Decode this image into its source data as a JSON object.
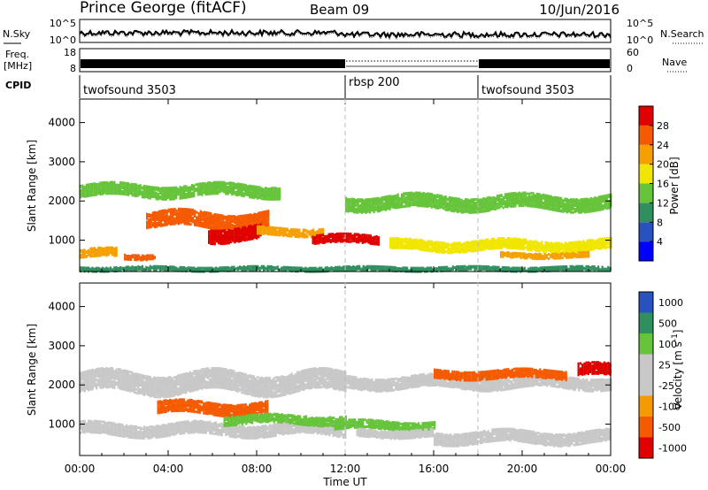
{
  "header": {
    "station": "Prince George (fitACF)",
    "beam": "Beam 09",
    "date": "10/Jun/2016"
  },
  "noise_panel": {
    "left_label": "N.Sky",
    "right_label": "N.Search",
    "left_ticks": [
      "10^5",
      "10^0"
    ],
    "right_ticks": [
      "10^5",
      "10^0"
    ]
  },
  "freq_panel": {
    "left_label_1": "Freq.",
    "left_label_2": "[MHz]",
    "right_label": "Nave",
    "left_ticks": [
      "18",
      "8"
    ],
    "right_ticks": [
      "60",
      "0"
    ]
  },
  "cpid": {
    "label": "CPID",
    "segments": [
      {
        "name": "twofsound 3503",
        "start": 0,
        "end": 12
      },
      {
        "name": "rbsp 200",
        "start": 12,
        "end": 18
      },
      {
        "name": "twofsound 3503",
        "start": 18,
        "end": 24
      }
    ]
  },
  "colors": {
    "power": [
      "#0000ff",
      "#2a52be",
      "#2f8f5e",
      "#66c43a",
      "#f0e600",
      "#f5a000",
      "#f55a00",
      "#e00000"
    ],
    "velocity": [
      "#e00000",
      "#f55a00",
      "#f59a00",
      "#c8c8c8",
      "#c8c8c8",
      "#66c43a",
      "#2f8f5e",
      "#2a52be"
    ]
  },
  "chart_data": [
    {
      "type": "heatmap",
      "ylabel": "Slant Range [km]",
      "ylim": [
        200,
        4600
      ],
      "yticks": [
        1000,
        2000,
        3000,
        4000
      ],
      "xlim": [
        0,
        24
      ],
      "colorbar": {
        "label": "Power [dB]",
        "ticks": [
          "4",
          "8",
          "12",
          "16",
          "20",
          "24",
          "28"
        ],
        "range": [
          0,
          32
        ]
      },
      "bands": [
        {
          "x0": 0.0,
          "x1": 1.7,
          "r_center": 700,
          "r_width": 220,
          "value": 22
        },
        {
          "x0": 2.0,
          "x1": 3.4,
          "r_center": 620,
          "r_width": 120,
          "value": 24
        },
        {
          "x0": 3.0,
          "x1": 8.5,
          "r_center": 1550,
          "r_width": 380,
          "value": 26
        },
        {
          "x0": 5.8,
          "x1": 8.2,
          "r_center": 1200,
          "r_width": 350,
          "value": 30
        },
        {
          "x0": 8.0,
          "x1": 11.0,
          "r_center": 1250,
          "r_width": 180,
          "value": 22
        },
        {
          "x0": 10.5,
          "x1": 13.5,
          "r_center": 1050,
          "r_width": 200,
          "value": 30
        },
        {
          "x0": 0.0,
          "x1": 9.0,
          "r_center": 2300,
          "r_width": 300,
          "value": 14
        },
        {
          "x0": 12.0,
          "x1": 24.0,
          "r_center": 2000,
          "r_width": 350,
          "value": 14
        },
        {
          "x0": 14.0,
          "x1": 24.0,
          "r_center": 900,
          "r_width": 250,
          "value": 16
        },
        {
          "x0": 19.0,
          "x1": 23.0,
          "r_center": 650,
          "r_width": 120,
          "value": 22
        },
        {
          "x0": 0.0,
          "x1": 24.0,
          "r_center": 300,
          "r_width": 90,
          "value": 8
        }
      ]
    },
    {
      "type": "heatmap",
      "ylabel": "Slant Range [km]",
      "xlabel": "Time UT",
      "ylim": [
        200,
        4600
      ],
      "yticks": [
        1000,
        2000,
        3000,
        4000
      ],
      "xlim": [
        0,
        24
      ],
      "xticks": [
        "00:00",
        "04:00",
        "08:00",
        "12:00",
        "16:00",
        "20:00",
        "00:00"
      ],
      "colorbar": {
        "label": "Velocity [m s-1]",
        "ticks": [
          "1000",
          "500",
          "100",
          "25",
          "-25",
          "-100",
          "-500",
          "-1000"
        ]
      },
      "bands": [
        {
          "x0": 0.0,
          "x1": 12.0,
          "r_center": 2100,
          "r_width": 500,
          "value": 0
        },
        {
          "x0": 0.0,
          "x1": 12.0,
          "r_center": 900,
          "r_width": 300,
          "value": 0
        },
        {
          "x0": 3.5,
          "x1": 8.5,
          "r_center": 1450,
          "r_width": 300,
          "value": -300
        },
        {
          "x0": 6.5,
          "x1": 12.0,
          "r_center": 1150,
          "r_width": 220,
          "value": 300
        },
        {
          "x0": 11.5,
          "x1": 16.0,
          "r_center": 1000,
          "r_width": 200,
          "value": 200
        },
        {
          "x0": 12.5,
          "x1": 16.0,
          "r_center": 800,
          "r_width": 180,
          "value": 60
        },
        {
          "x0": 12.0,
          "x1": 24.0,
          "r_center": 2100,
          "r_width": 300,
          "value": 0
        },
        {
          "x0": 16.0,
          "x1": 22.0,
          "r_center": 2300,
          "r_width": 200,
          "value": -150
        },
        {
          "x0": 16.0,
          "x1": 24.0,
          "r_center": 700,
          "r_width": 300,
          "value": 0
        },
        {
          "x0": 22.5,
          "x1": 24.0,
          "r_center": 2400,
          "r_width": 300,
          "value": -800
        }
      ]
    }
  ]
}
